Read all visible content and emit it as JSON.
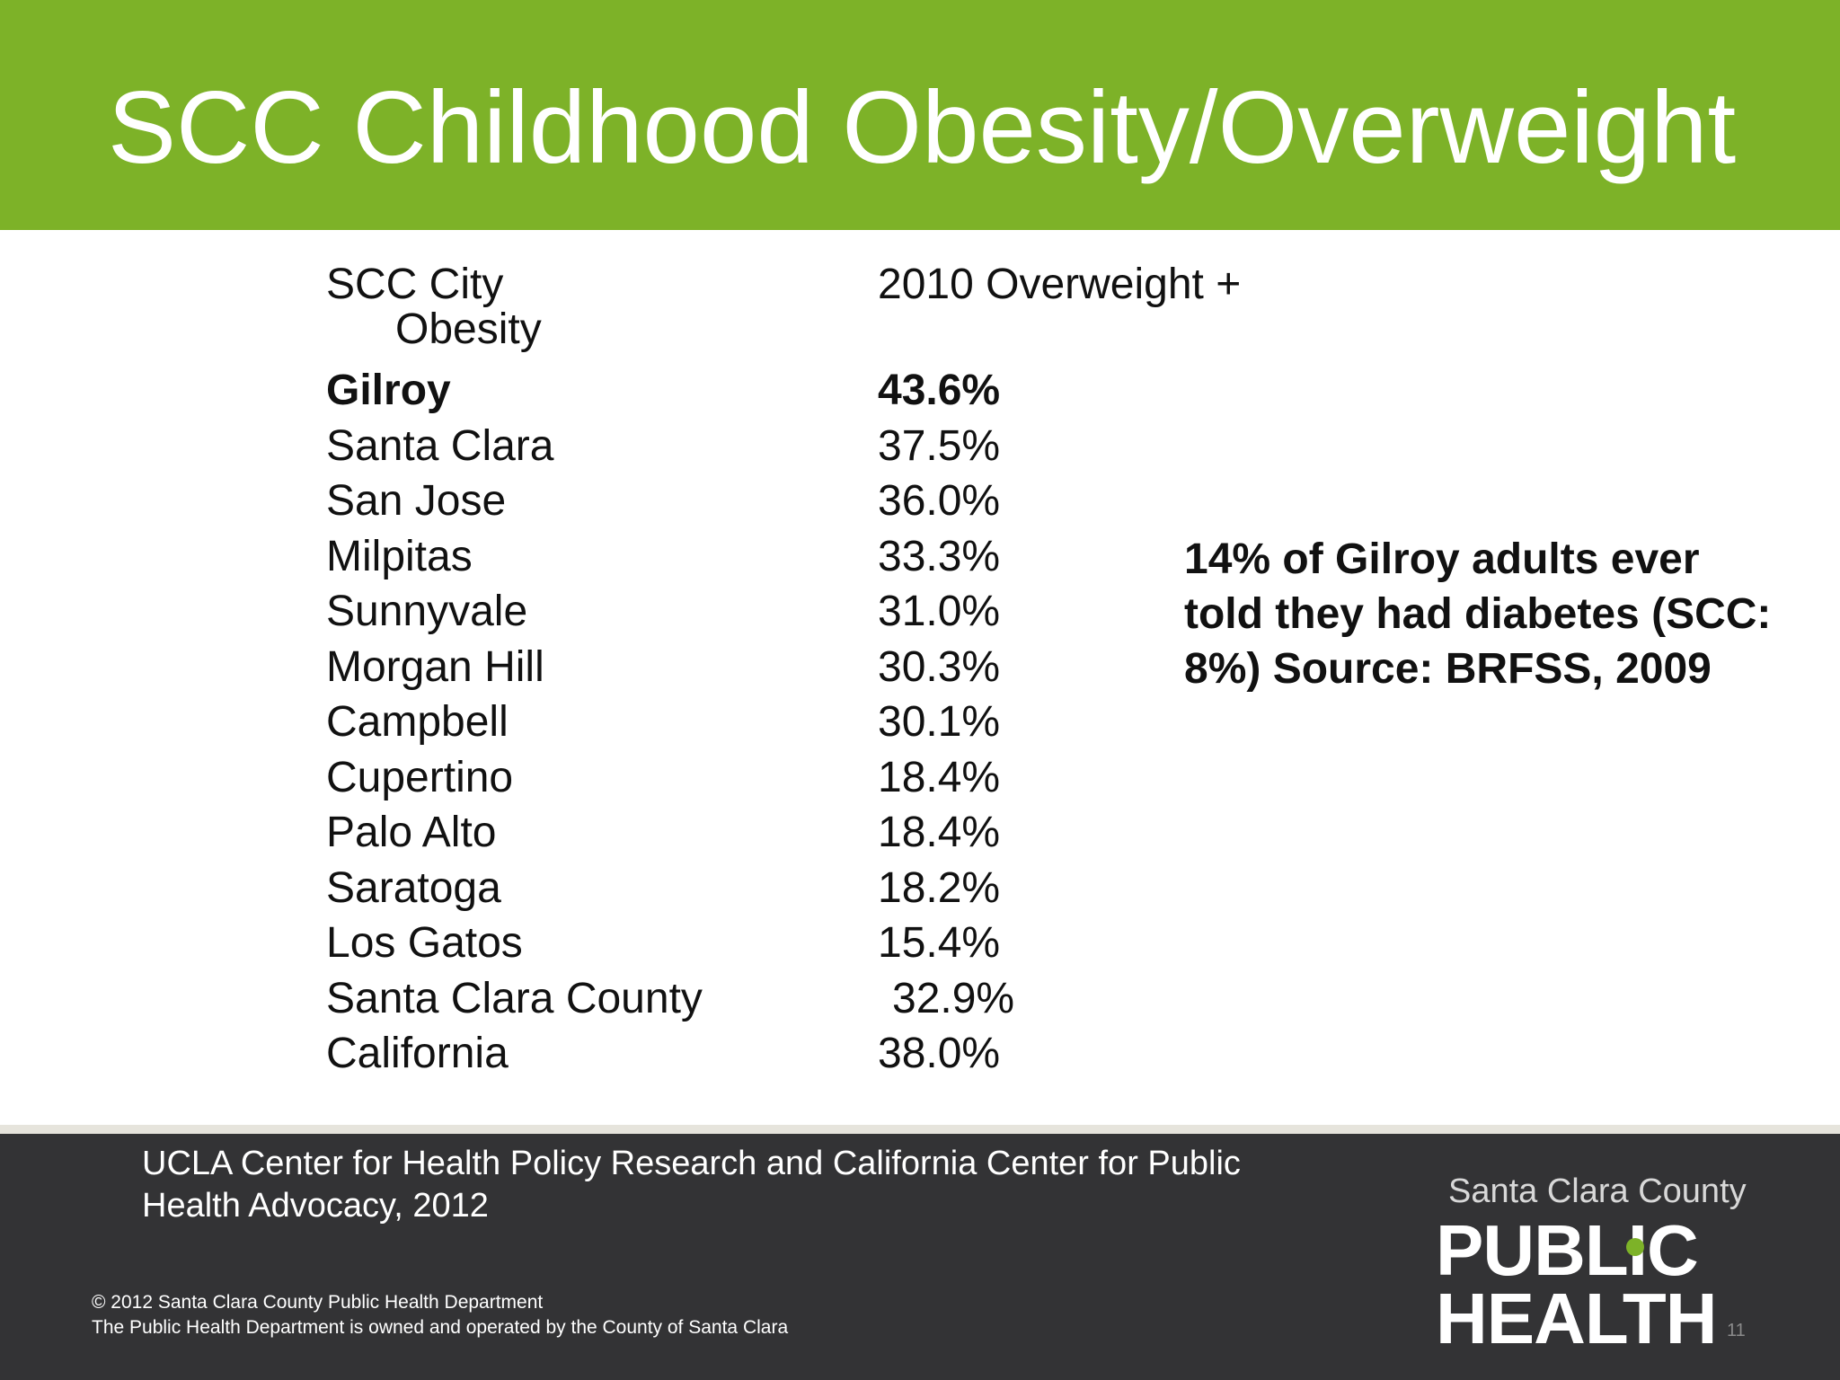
{
  "title": "SCC Childhood Obesity/Overweight",
  "table": {
    "header_city_line1": "SCC City",
    "header_city_line2": "Obesity",
    "header_value": "2010 Overweight +",
    "rows": [
      {
        "city": "Gilroy",
        "value": "43.6%",
        "bold": true
      },
      {
        "city": "Santa Clara",
        "value": "37.5%"
      },
      {
        "city": "San Jose",
        "value": "36.0%"
      },
      {
        "city": "Milpitas",
        "value": "33.3%"
      },
      {
        "city": "Sunnyvale",
        "value": "31.0%"
      },
      {
        "city": "Morgan Hill",
        "value": "30.3%"
      },
      {
        "city": "Campbell",
        "value": "30.1%"
      },
      {
        "city": "Cupertino",
        "value": "18.4%"
      },
      {
        "city": "Palo Alto",
        "value": "18.4%"
      },
      {
        "city": "Saratoga",
        "value": "18.2%"
      },
      {
        "city": "Los Gatos",
        "value": "15.4%"
      },
      {
        "city": "Santa Clara County",
        "value": "32.9%",
        "indent": true
      },
      {
        "city": "California",
        "value": "38.0%"
      }
    ]
  },
  "note": "14% of Gilroy adults ever told they had diabetes (SCC: 8%)  Source: BRFSS, 2009",
  "footer": {
    "source": "UCLA Center for Health Policy Research and California Center for Public Health Advocacy, 2012",
    "copyright_line1": "© 2012 Santa Clara County Public Health Department",
    "copyright_line2": "The Public Health Department is owned and operated by the County of Santa Clara",
    "page_number": "11"
  },
  "logo": {
    "county": "Santa Clara County",
    "word1": "PUBLIC",
    "word2": "HEALTH",
    "accent_color": "#7db228"
  },
  "colors": {
    "title_bar": "#7db228",
    "footer": "#333335",
    "separator": "#e6e4dc"
  }
}
